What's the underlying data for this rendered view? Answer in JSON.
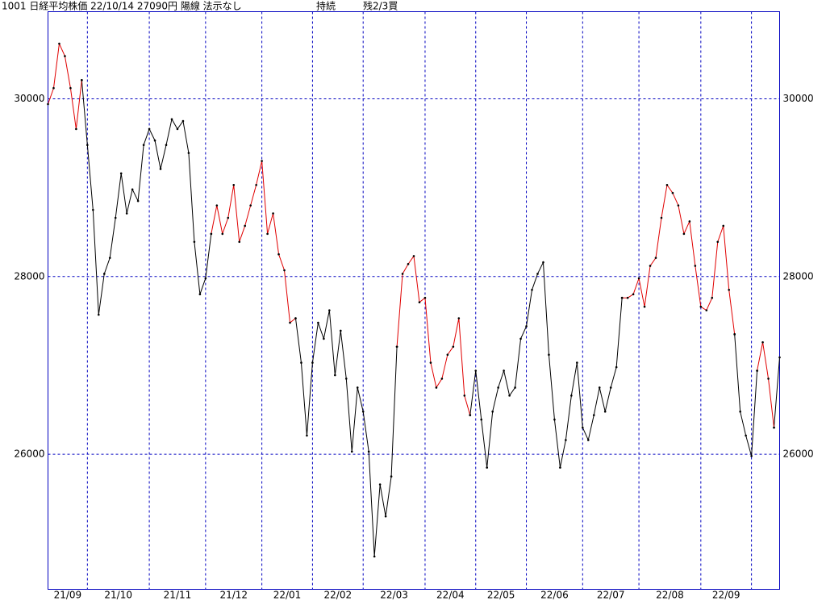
{
  "chart_data": {
    "type": "line",
    "title": "1001 日経平均株価 22/10/14 27090円 陽線 法示なし",
    "status": "持続",
    "signal": "残2/3買",
    "categories": [
      "21/09",
      null,
      null,
      null,
      null,
      null,
      null,
      "21/10",
      null,
      null,
      null,
      null,
      null,
      null,
      null,
      null,
      null,
      null,
      "21/11",
      null,
      null,
      null,
      null,
      null,
      null,
      null,
      null,
      null,
      "21/12",
      null,
      null,
      null,
      null,
      null,
      null,
      null,
      null,
      null,
      "22/01",
      null,
      null,
      null,
      null,
      null,
      null,
      null,
      null,
      "22/02",
      null,
      null,
      null,
      null,
      null,
      null,
      null,
      null,
      "22/03",
      null,
      null,
      null,
      null,
      null,
      null,
      null,
      null,
      null,
      null,
      "22/04",
      null,
      null,
      null,
      null,
      null,
      null,
      null,
      null,
      "22/05",
      null,
      null,
      null,
      null,
      null,
      null,
      null,
      null,
      "22/06",
      null,
      null,
      null,
      null,
      null,
      null,
      null,
      null,
      null,
      "22/07",
      null,
      null,
      null,
      null,
      null,
      null,
      null,
      null,
      null,
      "22/08",
      null,
      null,
      null,
      null,
      null,
      null,
      null,
      null,
      null,
      null,
      "22/09",
      null,
      null,
      null,
      null,
      null,
      null,
      null,
      null,
      null,
      null,
      null,
      null,
      null,
      null
    ],
    "xticks": [
      7,
      18,
      28,
      38,
      47,
      56,
      67,
      76,
      85,
      95,
      105,
      116,
      125
    ],
    "series": [
      {
        "color": "#000000",
        "values": [
          null,
          null,
          null,
          null,
          null,
          null,
          30210,
          29480,
          28750,
          27570,
          28030,
          28210,
          28660,
          29160,
          28710,
          28980,
          28850,
          29480,
          29660,
          29530,
          29210,
          29480,
          29770,
          29660,
          29750,
          29390,
          28390,
          27800,
          27980,
          28480,
          null,
          null,
          null,
          null,
          null,
          null,
          null,
          null,
          null,
          null,
          null,
          null,
          null,
          null,
          27530,
          27030,
          26210,
          27030,
          27480,
          27300,
          27620,
          26890,
          27390,
          26850,
          26030,
          26750,
          26480,
          26030,
          24850,
          25660,
          25300,
          25750,
          27210,
          null,
          null,
          null,
          null,
          null,
          null,
          null,
          null,
          null,
          null,
          null,
          null,
          26440,
          26940,
          26390,
          25850,
          26480,
          26750,
          26940,
          26660,
          26750,
          27300,
          27440,
          27850,
          28030,
          28160,
          27120,
          26390,
          25850,
          26160,
          26660,
          27030,
          26300,
          26160,
          26440,
          26750,
          26480,
          26750,
          26980,
          27760,
          null,
          null,
          null,
          null,
          null,
          null,
          null,
          null,
          null,
          null,
          null,
          null,
          null,
          null,
          null,
          null,
          null,
          null,
          null,
          27350,
          26480,
          26210,
          25980,
          26940,
          null,
          null,
          26300,
          27090
        ]
      },
      {
        "color": "#e00000",
        "values": [
          29940,
          30120,
          30620,
          30480,
          30120,
          29660,
          30210,
          null,
          null,
          null,
          null,
          null,
          null,
          null,
          null,
          null,
          null,
          null,
          null,
          null,
          null,
          null,
          null,
          null,
          null,
          null,
          null,
          null,
          null,
          28480,
          28800,
          28480,
          28660,
          29030,
          28390,
          28570,
          28800,
          29030,
          29300,
          28480,
          28710,
          28250,
          28070,
          27480,
          27530,
          null,
          null,
          null,
          null,
          null,
          null,
          null,
          null,
          null,
          null,
          null,
          null,
          null,
          null,
          null,
          null,
          null,
          27210,
          28030,
          28140,
          28230,
          27710,
          27760,
          27030,
          26750,
          26850,
          27120,
          27210,
          27530,
          26660,
          26440,
          null,
          null,
          null,
          null,
          null,
          null,
          null,
          null,
          null,
          null,
          null,
          null,
          null,
          null,
          null,
          null,
          null,
          null,
          null,
          null,
          null,
          null,
          null,
          null,
          null,
          null,
          27760,
          27760,
          27800,
          27980,
          27660,
          28120,
          28210,
          28660,
          29030,
          28940,
          28800,
          28480,
          28620,
          28120,
          27660,
          27620,
          27760,
          28390,
          28570,
          27850,
          27350,
          null,
          null,
          null,
          26940,
          27260,
          26850,
          26300,
          null
        ]
      }
    ],
    "ylim": [
      24480,
      30980
    ],
    "yticks": [
      26000,
      28000,
      30000
    ],
    "grid": true,
    "marker_color": "#000000"
  }
}
